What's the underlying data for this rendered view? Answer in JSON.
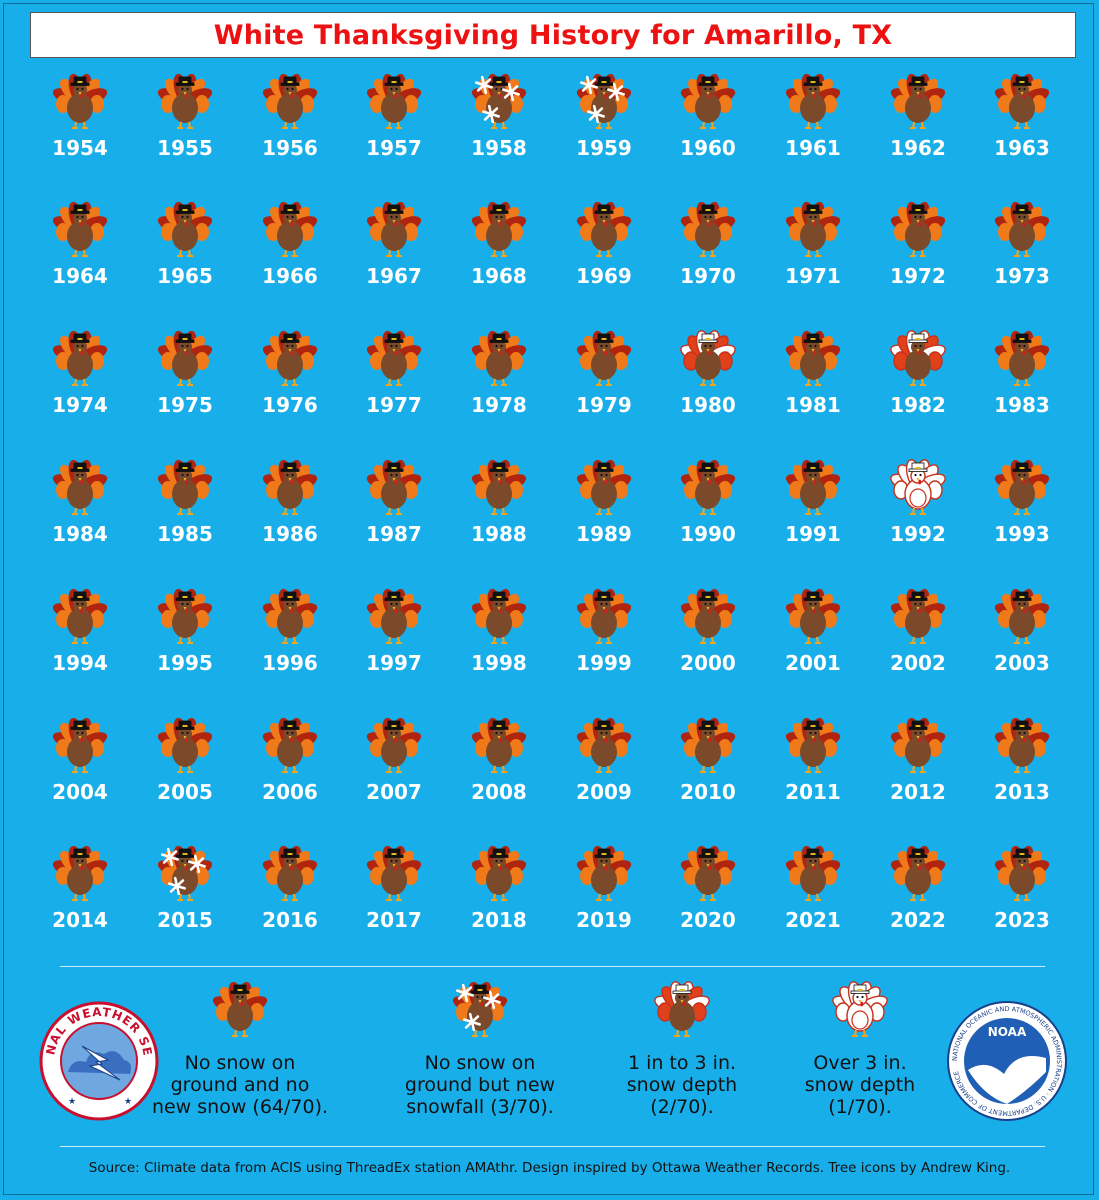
{
  "title": "White Thanksgiving History for Amarillo, TX",
  "chart_data": {
    "type": "table",
    "title": "White Thanksgiving History for Amarillo, TX",
    "categories_legend": [
      {
        "key": "none",
        "label": "No snow on\nground and no\nnew snow (64/70)."
      },
      {
        "key": "new_snow",
        "label": "No snow on\nground but new\nsnowfall (3/70)."
      },
      {
        "key": "depth_1_3",
        "label": "1 in to 3 in.\nsnow depth\n(2/70)."
      },
      {
        "key": "depth_over_3",
        "label": "Over 3 in.\nsnow depth\n(1/70)."
      }
    ],
    "years": [
      {
        "year": "1954",
        "category": "none"
      },
      {
        "year": "1955",
        "category": "none"
      },
      {
        "year": "1956",
        "category": "none"
      },
      {
        "year": "1957",
        "category": "none"
      },
      {
        "year": "1958",
        "category": "new_snow"
      },
      {
        "year": "1959",
        "category": "new_snow"
      },
      {
        "year": "1960",
        "category": "none"
      },
      {
        "year": "1961",
        "category": "none"
      },
      {
        "year": "1962",
        "category": "none"
      },
      {
        "year": "1963",
        "category": "none"
      },
      {
        "year": "1964",
        "category": "none"
      },
      {
        "year": "1965",
        "category": "none"
      },
      {
        "year": "1966",
        "category": "none"
      },
      {
        "year": "1967",
        "category": "none"
      },
      {
        "year": "1968",
        "category": "none"
      },
      {
        "year": "1969",
        "category": "none"
      },
      {
        "year": "1970",
        "category": "none"
      },
      {
        "year": "1971",
        "category": "none"
      },
      {
        "year": "1972",
        "category": "none"
      },
      {
        "year": "1973",
        "category": "none"
      },
      {
        "year": "1974",
        "category": "none"
      },
      {
        "year": "1975",
        "category": "none"
      },
      {
        "year": "1976",
        "category": "none"
      },
      {
        "year": "1977",
        "category": "none"
      },
      {
        "year": "1978",
        "category": "none"
      },
      {
        "year": "1979",
        "category": "none"
      },
      {
        "year": "1980",
        "category": "depth_1_3"
      },
      {
        "year": "1981",
        "category": "none"
      },
      {
        "year": "1982",
        "category": "depth_1_3"
      },
      {
        "year": "1983",
        "category": "none"
      },
      {
        "year": "1984",
        "category": "none"
      },
      {
        "year": "1985",
        "category": "none"
      },
      {
        "year": "1986",
        "category": "none"
      },
      {
        "year": "1987",
        "category": "none"
      },
      {
        "year": "1988",
        "category": "none"
      },
      {
        "year": "1989",
        "category": "none"
      },
      {
        "year": "1990",
        "category": "none"
      },
      {
        "year": "1991",
        "category": "none"
      },
      {
        "year": "1992",
        "category": "depth_over_3"
      },
      {
        "year": "1993",
        "category": "none"
      },
      {
        "year": "1994",
        "category": "none"
      },
      {
        "year": "1995",
        "category": "none"
      },
      {
        "year": "1996",
        "category": "none"
      },
      {
        "year": "1997",
        "category": "none"
      },
      {
        "year": "1998",
        "category": "none"
      },
      {
        "year": "1999",
        "category": "none"
      },
      {
        "year": "2000",
        "category": "none"
      },
      {
        "year": "2001",
        "category": "none"
      },
      {
        "year": "2002",
        "category": "none"
      },
      {
        "year": "2003",
        "category": "none"
      },
      {
        "year": "2004",
        "category": "none"
      },
      {
        "year": "2005",
        "category": "none"
      },
      {
        "year": "2006",
        "category": "none"
      },
      {
        "year": "2007",
        "category": "none"
      },
      {
        "year": "2008",
        "category": "none"
      },
      {
        "year": "2009",
        "category": "none"
      },
      {
        "year": "2010",
        "category": "none"
      },
      {
        "year": "2011",
        "category": "none"
      },
      {
        "year": "2012",
        "category": "none"
      },
      {
        "year": "2013",
        "category": "none"
      },
      {
        "year": "2014",
        "category": "none"
      },
      {
        "year": "2015",
        "category": "new_snow"
      },
      {
        "year": "2016",
        "category": "none"
      },
      {
        "year": "2017",
        "category": "none"
      },
      {
        "year": "2018",
        "category": "none"
      },
      {
        "year": "2019",
        "category": "none"
      },
      {
        "year": "2020",
        "category": "none"
      },
      {
        "year": "2021",
        "category": "none"
      },
      {
        "year": "2022",
        "category": "none"
      },
      {
        "year": "2023",
        "category": "none"
      }
    ]
  },
  "logos": {
    "nws_text": "NATIONAL WEATHER SERVICE",
    "noaa_text": "NOAA",
    "noaa_ring_text": "NATIONAL OCEANIC AND ATMOSPHERIC ADMINISTRATION · U.S. DEPARTMENT OF COMMERCE"
  },
  "source": "Source: Climate data from ACIS using ThreadEx station AMAthr. Design inspired by Ottawa Weather Records. Tree icons by Andrew King.",
  "colors": {
    "background": "#18aeea",
    "title": "#ee1111",
    "turkey_body": "#7a4a2a",
    "feather_red": "#b02510",
    "feather_orange": "#f07a1a",
    "snow": "#ffffff"
  }
}
